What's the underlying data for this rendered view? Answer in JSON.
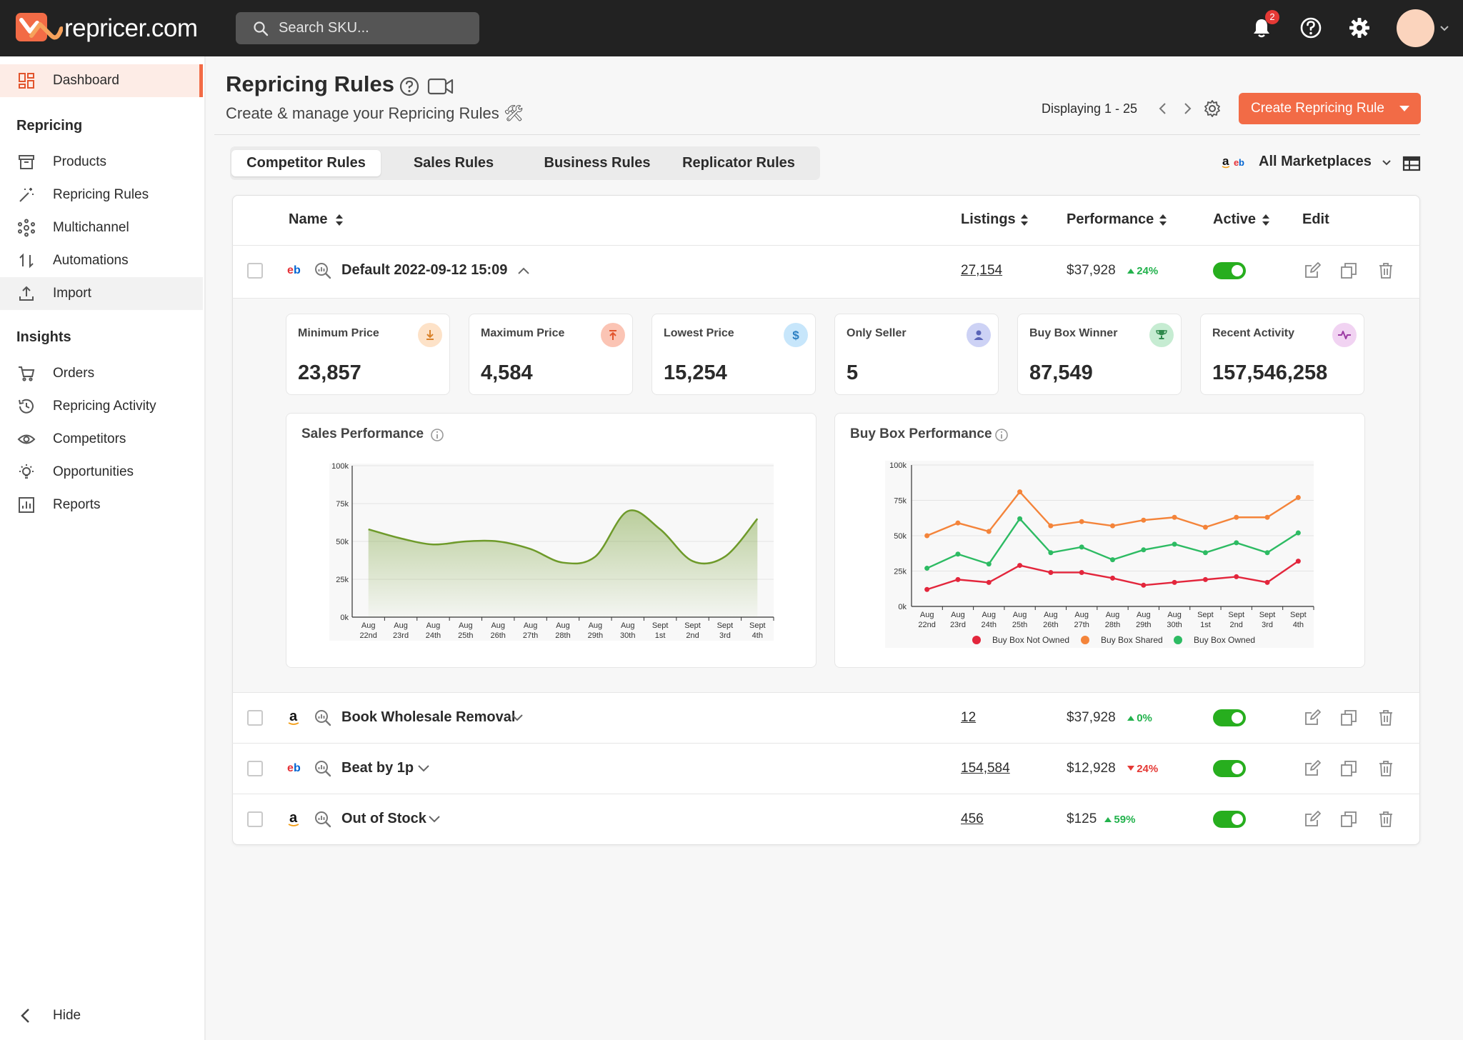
{
  "app": {
    "logo_text": "repricer.com"
  },
  "search": {
    "placeholder": "Search SKU..."
  },
  "notifications": {
    "count": "2"
  },
  "sidebar": {
    "dashboard": "Dashboard",
    "section_repricing": "Repricing",
    "products": "Products",
    "repricing_rules": "Repricing Rules",
    "multichannel": "Multichannel",
    "automations": "Automations",
    "import": "Import",
    "section_insights": "Insights",
    "orders": "Orders",
    "repricing_activity": "Repricing Activity",
    "competitors": "Competitors",
    "opportunities": "Opportunities",
    "reports": "Reports",
    "hide": "Hide"
  },
  "header": {
    "title": "Repricing Rules",
    "subtitle": "Create & manage your Repricing Rules 🛠",
    "displaying": "Displaying 1 - 25",
    "create_button": "Create Repricing Rule"
  },
  "tabs": [
    "Competitor Rules",
    "Sales Rules",
    "Business Rules",
    "Replicator Rules"
  ],
  "marketplace_filter": "All Marketplaces",
  "table": {
    "columns": {
      "name": "Name",
      "listings": "Listings",
      "performance": "Performance",
      "active": "Active",
      "edit": "Edit"
    },
    "rows": [
      {
        "marketplace": "ebay",
        "name": "Default 2022-09-12 15:09",
        "listings": "27,154",
        "performance": "$37,928",
        "delta": "24%",
        "direction": "up",
        "active": true,
        "expanded": true
      },
      {
        "marketplace": "amazon",
        "name": "Book Wholesale Removal",
        "listings": "12",
        "performance": "$37,928",
        "delta": "0%",
        "direction": "up",
        "active": true,
        "expanded": false
      },
      {
        "marketplace": "ebay",
        "name": "Beat by 1p",
        "listings": "154,584",
        "performance": "$12,928",
        "delta": "24%",
        "direction": "down",
        "active": true,
        "expanded": false
      },
      {
        "marketplace": "amazon",
        "name": "Out of Stock",
        "listings": "456",
        "performance": "$125",
        "delta": "59%",
        "direction": "up",
        "active": true,
        "expanded": false
      }
    ]
  },
  "stats": [
    {
      "label": "Minimum Price",
      "value": "23,857",
      "icon": "download-icon",
      "color": "#fde2c8",
      "ink": "#d9822b"
    },
    {
      "label": "Maximum Price",
      "value": "4,584",
      "icon": "upload-top-icon",
      "color": "#fbc4b4",
      "ink": "#e2552d"
    },
    {
      "label": "Lowest Price",
      "value": "15,254",
      "icon": "dollar-icon",
      "color": "#c7e6fb",
      "ink": "#2b7fc2"
    },
    {
      "label": "Only Seller",
      "value": "5",
      "icon": "person-icon",
      "color": "#cdd2f5",
      "ink": "#5a64b8"
    },
    {
      "label": "Buy Box Winner",
      "value": "87,549",
      "icon": "trophy-icon",
      "color": "#c6ecd2",
      "ink": "#2f8a4c"
    },
    {
      "label": "Recent Activity",
      "value": "157,546,258",
      "icon": "activity-icon",
      "color": "#f1d3f2",
      "ink": "#9c3aa3"
    }
  ],
  "chart_data": [
    {
      "type": "area",
      "title": "Sales Performance",
      "categories": [
        "Aug 22nd",
        "Aug 23rd",
        "Aug 24th",
        "Aug 25th",
        "Aug 26th",
        "Aug 27th",
        "Aug 28th",
        "Aug 29th",
        "Aug 30th",
        "Sept 1st",
        "Sept 2nd",
        "Sept 3rd",
        "Sept 4th"
      ],
      "y_ticks": [
        "0k",
        "25k",
        "50k",
        "75k",
        "100k"
      ],
      "ylim": [
        0,
        100000
      ],
      "series": [
        {
          "values": [
            58000,
            52000,
            48000,
            50000,
            50000,
            45000,
            36000,
            40000,
            70000,
            58000,
            37000,
            40000,
            65000
          ]
        }
      ],
      "color": "#6e9a2a"
    },
    {
      "type": "line",
      "title": "Buy Box Performance",
      "categories": [
        "Aug 22nd",
        "Aug 23rd",
        "Aug 24th",
        "Aug 25th",
        "Aug 26th",
        "Aug 27th",
        "Aug 28th",
        "Aug 29th",
        "Aug 30th",
        "Sept 1st",
        "Sept 2nd",
        "Sept 3rd",
        "Sept 4th"
      ],
      "y_ticks": [
        "0k",
        "25k",
        "50k",
        "75k",
        "100k"
      ],
      "ylim": [
        0,
        100000
      ],
      "legend": "bottom",
      "series": [
        {
          "name": "Buy Box Not Owned",
          "color": "#e3263c",
          "values": [
            12000,
            19000,
            17000,
            29000,
            24000,
            24000,
            20000,
            15000,
            17000,
            19000,
            21000,
            17000,
            32000
          ]
        },
        {
          "name": "Buy Box Shared",
          "color": "#f4843a",
          "values": [
            50000,
            59000,
            53000,
            81000,
            57000,
            60000,
            57000,
            61000,
            63000,
            56000,
            63000,
            63000,
            77000
          ]
        },
        {
          "name": "Buy Box Owned",
          "color": "#2dbb63",
          "values": [
            27000,
            37000,
            30000,
            62000,
            38000,
            42000,
            33000,
            40000,
            44000,
            38000,
            45000,
            38000,
            52000
          ]
        }
      ]
    }
  ]
}
